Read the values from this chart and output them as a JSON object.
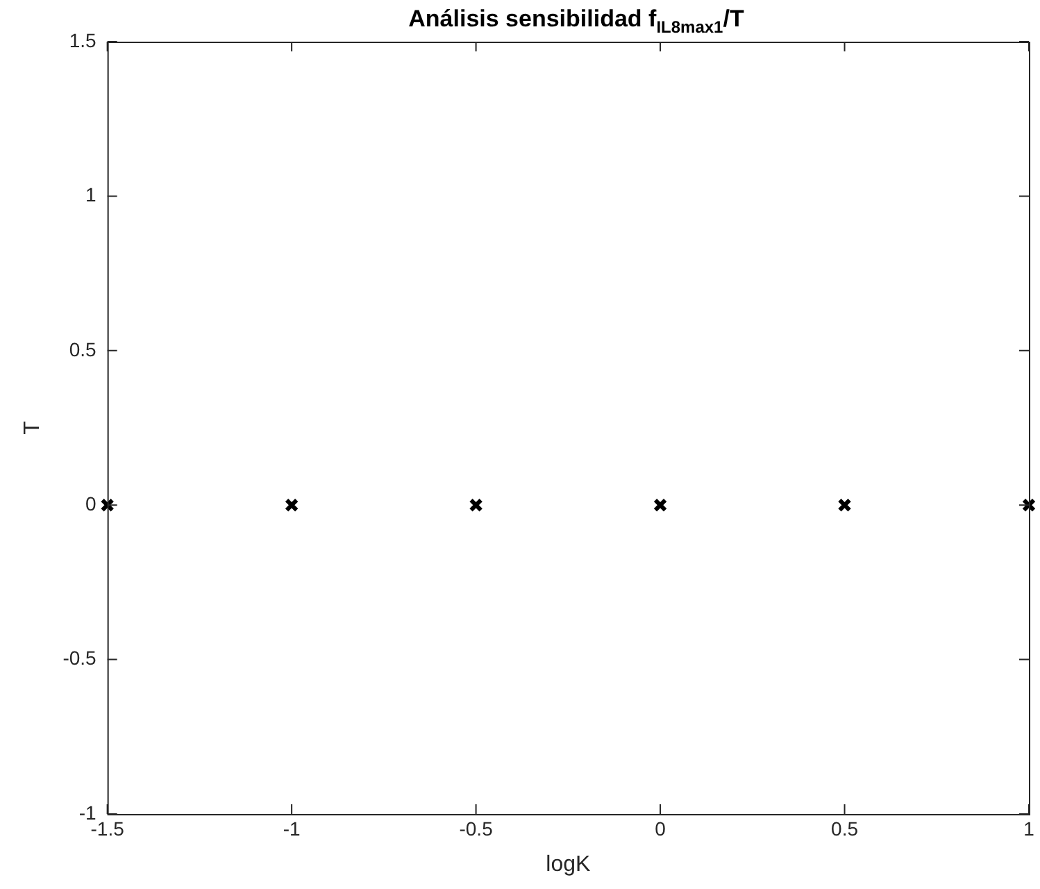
{
  "chart_data": {
    "type": "scatter",
    "title": "Análisis sensibilidad f$_{IL8max1}$/T",
    "xlabel": "logK",
    "ylabel": "T",
    "x": [
      -1.5,
      -1,
      -0.5,
      0,
      0.5,
      1
    ],
    "series": [
      {
        "color": "#000000",
        "values": [
          0,
          0,
          0,
          0,
          0,
          0
        ]
      }
    ],
    "xlim": [
      -1.5,
      1
    ],
    "xticks": [
      -1.5,
      -1,
      -0.5,
      0,
      0.5,
      1
    ],
    "ylim": [
      -1,
      1.5
    ],
    "yticks": [
      -1,
      -0.5,
      0,
      0.5,
      1,
      1.5
    ],
    "marker": "cross",
    "grid": false,
    "legend": false
  }
}
